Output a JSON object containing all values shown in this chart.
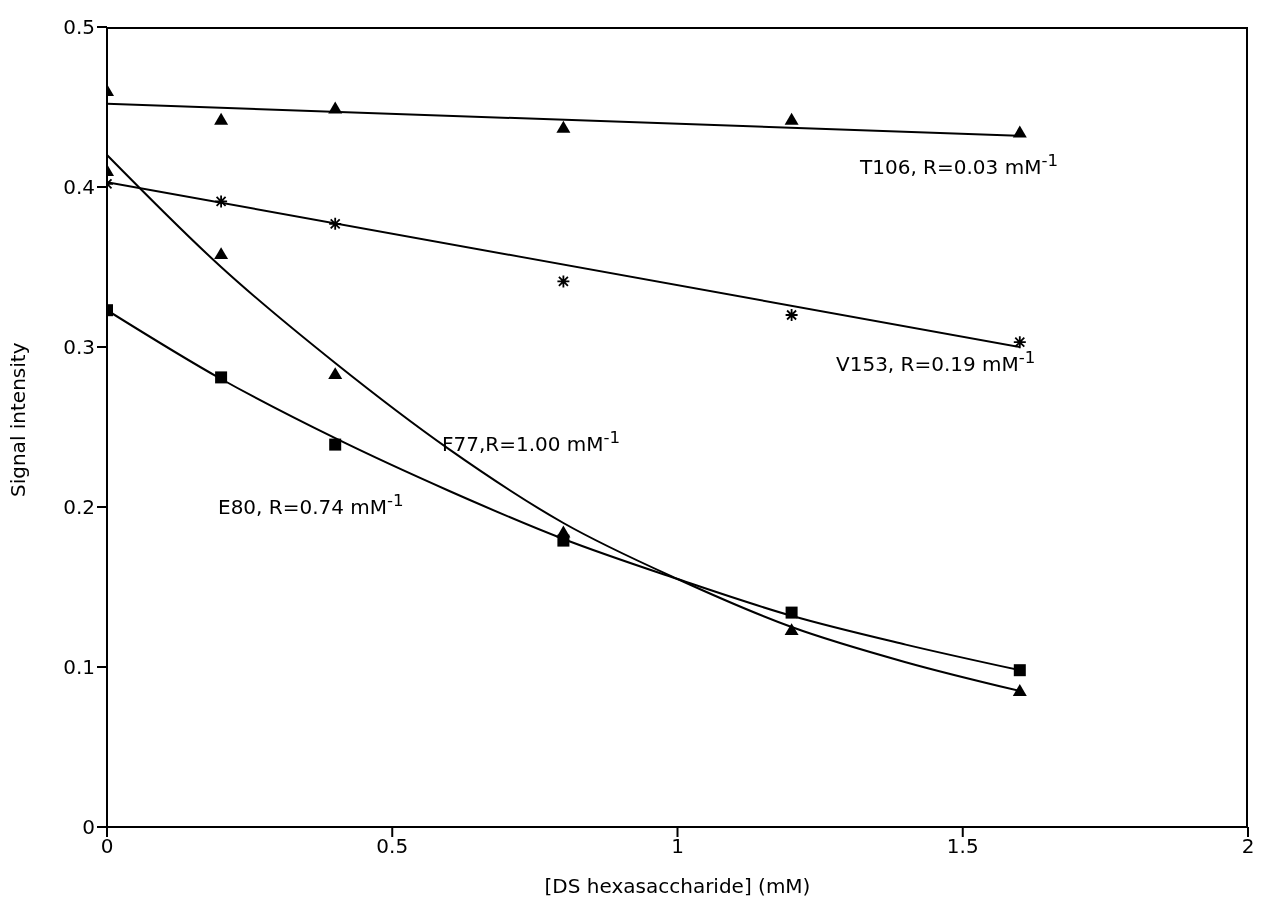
{
  "chart_data": {
    "type": "scatter",
    "xlabel": "[DS hexasaccharide] (mM)",
    "ylabel": "Signal intensity",
    "xlim": [
      0,
      2
    ],
    "xticks": [
      0,
      0.5,
      1,
      1.5,
      2
    ],
    "ylim": [
      0,
      0.5
    ],
    "yticks": [
      0,
      0.1,
      0.2,
      0.3,
      0.4,
      0.5
    ],
    "grid": false,
    "legend": false,
    "series": [
      {
        "marker": "triangle",
        "color": "#000000",
        "x": [
          0,
          0.2,
          0.4,
          0.8,
          1.2,
          1.6
        ],
        "values": [
          0.46,
          0.442,
          0.449,
          0.437,
          0.442,
          0.434
        ]
      },
      {
        "type": "line",
        "marker": "none",
        "color": "#000000",
        "x": [
          0,
          1.6
        ],
        "values": [
          0.452,
          0.432
        ]
      },
      {
        "marker": "cross",
        "color": "#000000",
        "x": [
          0,
          0.2,
          0.4,
          0.8,
          1.2,
          1.6
        ],
        "values": [
          0.402,
          0.391,
          0.377,
          0.341,
          0.32,
          0.303
        ]
      },
      {
        "type": "line",
        "marker": "none",
        "color": "#000000",
        "x": [
          0,
          1.6
        ],
        "values": [
          0.403,
          0.3
        ]
      },
      {
        "marker": "triangle",
        "color": "#000000",
        "x": [
          0,
          0.2,
          0.4,
          0.8,
          1.2,
          1.6
        ],
        "values": [
          0.41,
          0.358,
          0.283,
          0.184,
          0.123,
          0.085
        ]
      },
      {
        "type": "line",
        "marker": "none",
        "color": "#000000",
        "x": [
          0,
          0.2,
          0.4,
          0.6,
          0.8,
          1.0,
          1.2,
          1.4,
          1.6
        ],
        "values": [
          0.42,
          0.35,
          0.29,
          0.236,
          0.19,
          0.155,
          0.125,
          0.103,
          0.085
        ]
      },
      {
        "marker": "square",
        "color": "#000000",
        "x": [
          0,
          0.2,
          0.4,
          0.8,
          1.2,
          1.6
        ],
        "values": [
          0.323,
          0.281,
          0.239,
          0.179,
          0.134,
          0.098
        ]
      },
      {
        "type": "line",
        "marker": "none",
        "color": "#000000",
        "x": [
          0,
          0.2,
          0.4,
          0.6,
          0.8,
          1.0,
          1.2,
          1.4,
          1.6
        ],
        "values": [
          0.323,
          0.28,
          0.243,
          0.21,
          0.18,
          0.155,
          0.132,
          0.114,
          0.098
        ]
      }
    ],
    "annotations": [
      "T106, R=0.03 mM$^{-1}$",
      "V153, R=0.19 mM$^{-1}$",
      "F77,R=1.00 mM$^{-1}$",
      "E80, R=0.74 mM$^{-1}$"
    ]
  }
}
